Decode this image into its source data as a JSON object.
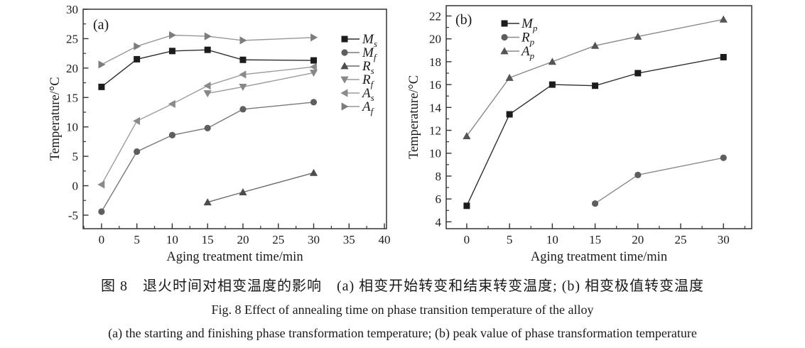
{
  "figure": {
    "caption_cn": "图 8　退火时间对相变温度的影响　(a) 相变开始转变和结束转变温度; (b) 相变极值转变温度",
    "caption_en": "Fig. 8   Effect of annealing time on phase transition temperature of the alloy",
    "caption_sub": "(a)  the starting and finishing phase transformation temperature; (b)  peak value of phase transformation temperature"
  },
  "chart_data": [
    {
      "id": "a",
      "type": "line",
      "panel_label": "(a)",
      "xlabel": "Aging treatment time/min",
      "ylabel": "Temperature/°C",
      "xlim": [
        -2.6,
        40.3
      ],
      "ylim": [
        -7.3,
        30
      ],
      "xticks": [
        0,
        5,
        10,
        15,
        20,
        25,
        30,
        35,
        40
      ],
      "yticks": [
        -5,
        0,
        5,
        10,
        15,
        20,
        25,
        30
      ],
      "x_minor_step": 2.5,
      "y_minor_step": 2.5,
      "grid": false,
      "legend_position": "inside-right",
      "series": [
        {
          "name": "M",
          "sub": "s",
          "marker": "square",
          "color": "#1c1c1c",
          "line_color": "#2e2e2e",
          "x": [
            0,
            5,
            10,
            15,
            20,
            30
          ],
          "y": [
            16.8,
            21.5,
            22.9,
            23.1,
            21.4,
            21.3
          ]
        },
        {
          "name": "M",
          "sub": "f",
          "marker": "circle",
          "color": "#5e5e5e",
          "line_color": "#787878",
          "x": [
            0,
            5,
            10,
            15,
            20,
            30
          ],
          "y": [
            -4.4,
            5.8,
            8.6,
            9.8,
            13.0,
            14.2
          ]
        },
        {
          "name": "R",
          "sub": "s",
          "marker": "triangle-up",
          "color": "#4d4d4d",
          "line_color": "#6a6a6a",
          "x": [
            15,
            20,
            30
          ],
          "y": [
            -2.8,
            -1.1,
            2.2
          ]
        },
        {
          "name": "R",
          "sub": "f",
          "marker": "triangle-down",
          "color": "#878787",
          "line_color": "#9a9a9a",
          "x": [
            15,
            20,
            30
          ],
          "y": [
            15.7,
            16.8,
            19.2
          ]
        },
        {
          "name": "A",
          "sub": "s",
          "marker": "triangle-left",
          "color": "#8a8a8a",
          "line_color": "#9c9c9c",
          "x": [
            0,
            5,
            10,
            15,
            20,
            30
          ],
          "y": [
            0.2,
            11.0,
            13.9,
            17.0,
            18.9,
            20.2
          ]
        },
        {
          "name": "A",
          "sub": "f",
          "marker": "triangle-right",
          "color": "#7d7d7d",
          "line_color": "#979797",
          "x": [
            0,
            5,
            10,
            15,
            20,
            30
          ],
          "y": [
            20.6,
            23.7,
            25.6,
            25.4,
            24.7,
            25.2
          ]
        }
      ]
    },
    {
      "id": "b",
      "type": "line",
      "panel_label": "(b)",
      "xlabel": "Aging treatment time/min",
      "ylabel": "Temperature/°C",
      "xlim": [
        -2.4,
        33.3
      ],
      "ylim": [
        3.4,
        22.9
      ],
      "xticks": [
        0,
        5,
        10,
        15,
        20,
        25,
        30
      ],
      "yticks": [
        4,
        6,
        8,
        10,
        12,
        14,
        16,
        18,
        20,
        22
      ],
      "x_minor_step": 2.5,
      "y_minor_step": 1,
      "grid": false,
      "legend_position": "inside-top-left",
      "series": [
        {
          "name": "M",
          "sub": "p",
          "marker": "square",
          "color": "#1c1c1c",
          "line_color": "#2e2e2e",
          "x": [
            0,
            5,
            10,
            15,
            20,
            30
          ],
          "y": [
            5.4,
            13.4,
            16.0,
            15.9,
            17.0,
            18.4
          ]
        },
        {
          "name": "R",
          "sub": "p",
          "marker": "circle",
          "color": "#5e5e5e",
          "line_color": "#8a8a8a",
          "x": [
            15,
            20,
            30
          ],
          "y": [
            5.6,
            8.1,
            9.6
          ]
        },
        {
          "name": "A",
          "sub": "p",
          "marker": "triangle-up",
          "color": "#555555",
          "line_color": "#8a8a8a",
          "x": [
            0,
            5,
            10,
            15,
            20,
            30
          ],
          "y": [
            11.5,
            16.6,
            18.0,
            19.4,
            20.2,
            21.7
          ]
        }
      ]
    }
  ]
}
